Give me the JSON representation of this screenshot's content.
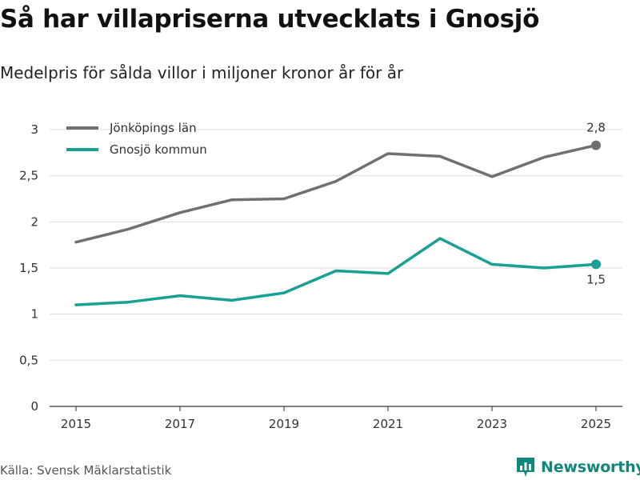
{
  "title": "Så har villapriserna utvecklats i Gnosjö",
  "subtitle": "Medelpris för sålda villor i miljoner kronor år för år",
  "source": "Källa: Svensk Mäklarstatistik",
  "brand": "Newsworthy",
  "colors": {
    "series_1": "#707074",
    "series_2": "#17a093",
    "grid": "#dddddd",
    "axis": "#333333",
    "brand": "#11867a"
  },
  "chart_data": {
    "type": "line",
    "title": "Så har villapriserna utvecklats i Gnosjö",
    "subtitle": "Medelpris för sålda villor i miljoner kronor år för år",
    "xlabel": "",
    "ylabel": "",
    "x": [
      2015,
      2016,
      2017,
      2018,
      2019,
      2020,
      2021,
      2022,
      2023,
      2024,
      2025
    ],
    "xticks": [
      "2015",
      "2017",
      "2019",
      "2021",
      "2023",
      "2025"
    ],
    "ylim": [
      0,
      3
    ],
    "yticks": [
      "0",
      "0,5",
      "1",
      "1,5",
      "2",
      "2,5",
      "3"
    ],
    "series": [
      {
        "name": "Jönköpings län",
        "values": [
          1.78,
          1.92,
          2.1,
          2.24,
          2.25,
          2.44,
          2.74,
          2.71,
          2.49,
          2.7,
          2.83
        ],
        "end_label": "2,8"
      },
      {
        "name": "Gnosjö kommun",
        "values": [
          1.1,
          1.13,
          1.2,
          1.15,
          1.23,
          1.47,
          1.44,
          1.82,
          1.54,
          1.5,
          1.54
        ],
        "end_label": "1,5"
      }
    ],
    "legend": "top-left",
    "grid": true
  }
}
